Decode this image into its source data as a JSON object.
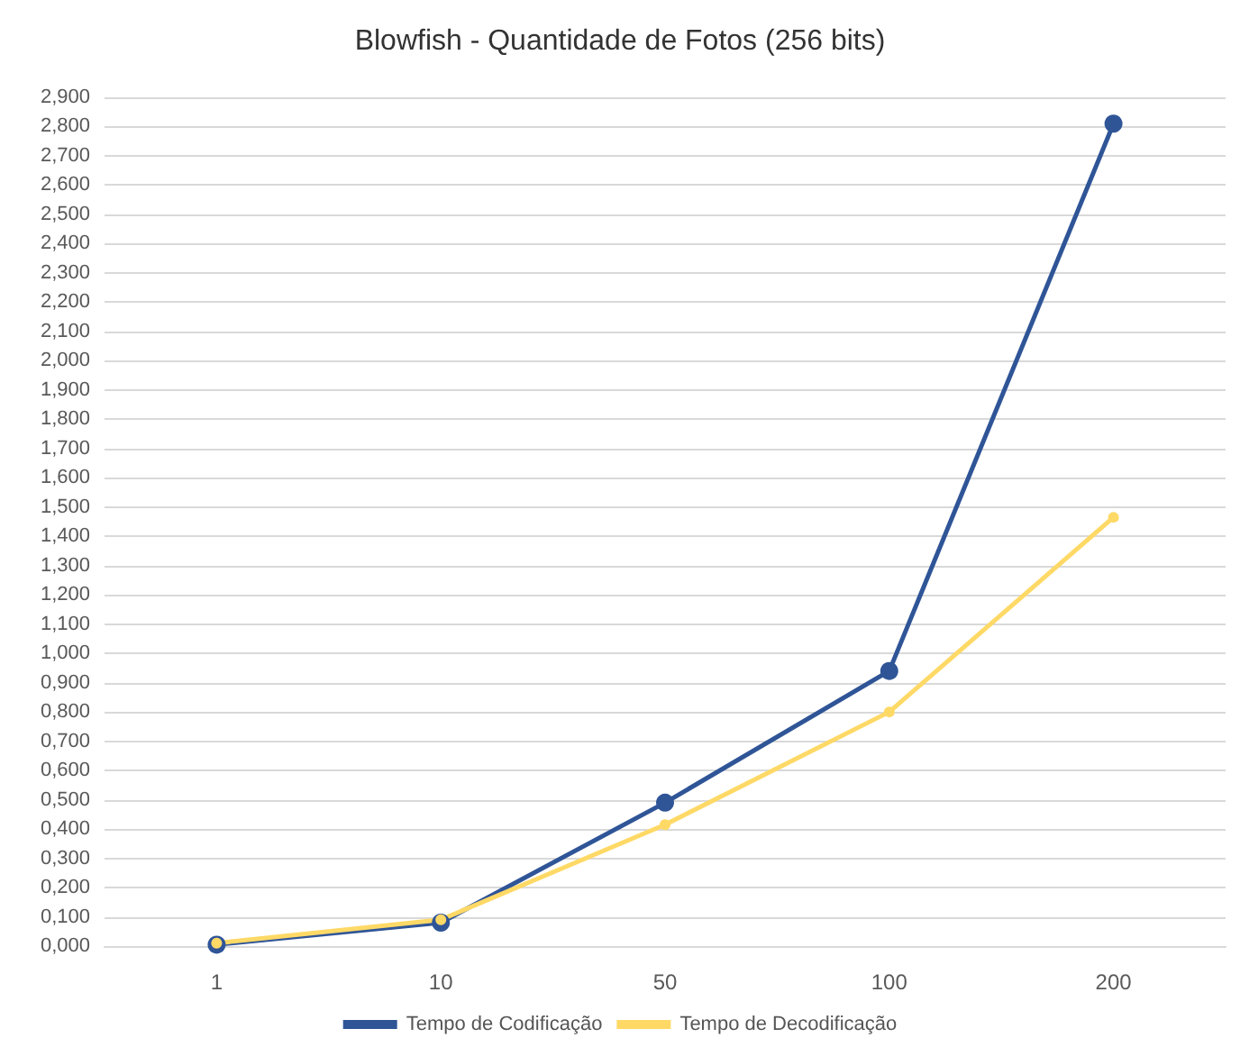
{
  "chart_data": {
    "type": "line",
    "title": "Blowfish - Quantidade de Fotos (256 bits)",
    "categories": [
      "1",
      "10",
      "50",
      "100",
      "200"
    ],
    "series": [
      {
        "name": "Tempo de Codificação",
        "color": "#2f5597",
        "values": [
          0.005,
          0.08,
          0.49,
          0.94,
          2.81
        ]
      },
      {
        "name": "Tempo de Decodificação",
        "color": "#ffd966",
        "values": [
          0.01,
          0.09,
          0.415,
          0.8,
          1.465
        ]
      }
    ],
    "ylim": [
      0,
      2.9
    ],
    "yticks": [
      {
        "value": 0,
        "label": "0,000"
      },
      {
        "value": 0.1,
        "label": "0,100"
      },
      {
        "value": 0.2,
        "label": "0,200"
      },
      {
        "value": 0.3,
        "label": "0,300"
      },
      {
        "value": 0.4,
        "label": "0,400"
      },
      {
        "value": 0.5,
        "label": "0,500"
      },
      {
        "value": 0.6,
        "label": "0,600"
      },
      {
        "value": 0.7,
        "label": "0,700"
      },
      {
        "value": 0.8,
        "label": "0,800"
      },
      {
        "value": 0.9,
        "label": "0,900"
      },
      {
        "value": 1,
        "label": "1,000"
      },
      {
        "value": 1.1,
        "label": "1,100"
      },
      {
        "value": 1.2,
        "label": "1,200"
      },
      {
        "value": 1.3,
        "label": "1,300"
      },
      {
        "value": 1.4,
        "label": "1,400"
      },
      {
        "value": 1.5,
        "label": "1,500"
      },
      {
        "value": 1.6,
        "label": "1,600"
      },
      {
        "value": 1.7,
        "label": "1,700"
      },
      {
        "value": 1.8,
        "label": "1,800"
      },
      {
        "value": 1.9,
        "label": "1,900"
      },
      {
        "value": 2,
        "label": "2,000"
      },
      {
        "value": 2.1,
        "label": "2,100"
      },
      {
        "value": 2.2,
        "label": "2,200"
      },
      {
        "value": 2.3,
        "label": "2,300"
      },
      {
        "value": 2.4,
        "label": "2,400"
      },
      {
        "value": 2.5,
        "label": "2,500"
      },
      {
        "value": 2.6,
        "label": "2,600"
      },
      {
        "value": 2.7,
        "label": "2,700"
      },
      {
        "value": 2.8,
        "label": "2,800"
      },
      {
        "value": 2.9,
        "label": "2,900"
      }
    ],
    "grid": "y",
    "legend": "bottom",
    "marker": "circle",
    "line_style": "solid"
  }
}
